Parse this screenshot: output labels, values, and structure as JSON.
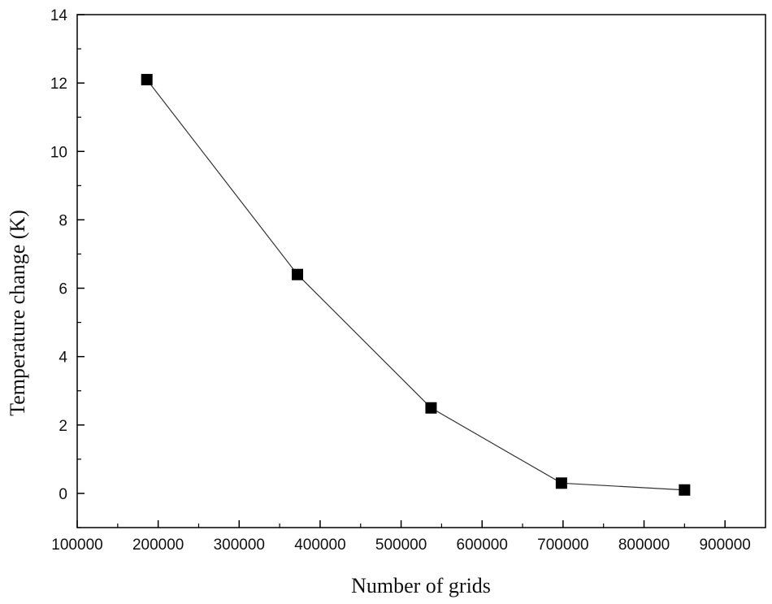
{
  "chart_data": {
    "type": "line",
    "title": "",
    "xlabel": "Number of grids",
    "ylabel": "Temperature change (K)",
    "xlim": [
      100000,
      950000
    ],
    "ylim": [
      -1,
      14
    ],
    "x_ticks": [
      100000,
      200000,
      300000,
      400000,
      500000,
      600000,
      700000,
      800000,
      900000
    ],
    "x_tick_labels": [
      "100000",
      "200000",
      "300000",
      "400000",
      "500000",
      "600000",
      "700000",
      "800000",
      "900000"
    ],
    "y_ticks": [
      0,
      2,
      4,
      6,
      8,
      10,
      12,
      14
    ],
    "y_tick_labels": [
      "0",
      "2",
      "4",
      "6",
      "8",
      "10",
      "12",
      "14"
    ],
    "grid": false,
    "legend": "none",
    "series": [
      {
        "marker": "square",
        "color": "#000000",
        "x": [
          186000,
          372000,
          537000,
          698000,
          850000
        ],
        "y": [
          12.1,
          6.4,
          2.5,
          0.3,
          0.1
        ]
      }
    ]
  }
}
